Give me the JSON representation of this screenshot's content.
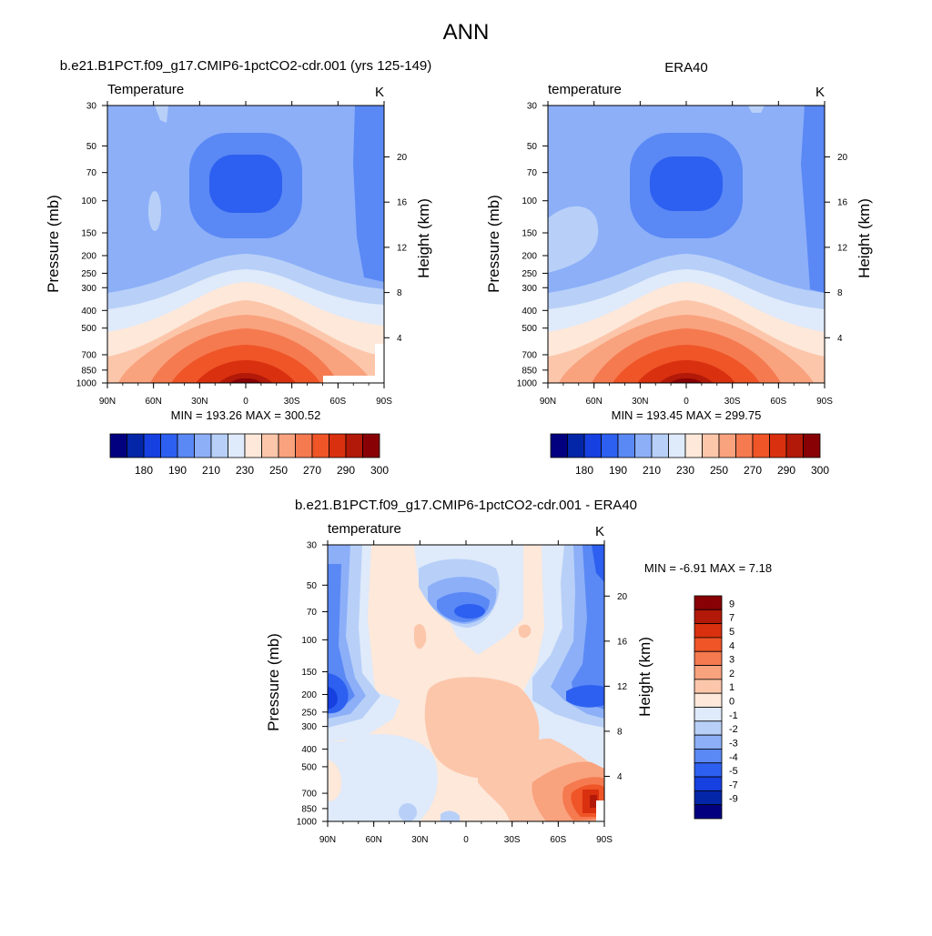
{
  "main_title": "ANN",
  "chart_data": [
    {
      "type": "heatmap",
      "title": "b.e21.B1PCT.f09_g17.CMIP6-1pctCO2-cdr.001 (yrs 125-149)",
      "left_label": "Temperature",
      "right_label": "K",
      "xlabel": "",
      "ylabel": "Pressure (mb)",
      "y2label": "Height (km)",
      "x_ticks": [
        "90N",
        "60N",
        "30N",
        "0",
        "30S",
        "60S",
        "90S"
      ],
      "y_ticks": [
        "30",
        "50",
        "70",
        "100",
        "150",
        "200",
        "250",
        "300",
        "400",
        "500",
        "700",
        "850",
        "1000"
      ],
      "y2_ticks": [
        "20",
        "16",
        "12",
        "8",
        "4"
      ],
      "min": 193.26,
      "max": 300.52,
      "stats": "MIN = 193.26  MAX = 300.52",
      "colorbar_labels": [
        "180",
        "190",
        "210",
        "230",
        "250",
        "270",
        "290",
        "300"
      ],
      "colorbar_colors": [
        "#030080",
        "#0326a8",
        "#1640e0",
        "#2d60f0",
        "#5a88f5",
        "#8caff8",
        "#b8d0f8",
        "#dfeafa",
        "#fde8da",
        "#fcc6aa",
        "#f9a27e",
        "#f57a50",
        "#ef5527",
        "#d9300f",
        "#b21908",
        "#880205"
      ]
    },
    {
      "type": "heatmap",
      "title": "ERA40",
      "left_label": "temperature",
      "right_label": "K",
      "xlabel": "",
      "ylabel": "Pressure (mb)",
      "y2label": "Height (km)",
      "x_ticks": [
        "90N",
        "60N",
        "30N",
        "0",
        "30S",
        "60S",
        "90S"
      ],
      "y_ticks": [
        "30",
        "50",
        "70",
        "100",
        "150",
        "200",
        "250",
        "300",
        "400",
        "500",
        "700",
        "850",
        "1000"
      ],
      "y2_ticks": [
        "20",
        "16",
        "12",
        "8",
        "4"
      ],
      "min": 193.45,
      "max": 299.75,
      "stats": "MIN = 193.45  MAX = 299.75",
      "colorbar_labels": [
        "180",
        "190",
        "210",
        "230",
        "250",
        "270",
        "290",
        "300"
      ],
      "colorbar_colors": [
        "#030080",
        "#0326a8",
        "#1640e0",
        "#2d60f0",
        "#5a88f5",
        "#8caff8",
        "#b8d0f8",
        "#dfeafa",
        "#fde8da",
        "#fcc6aa",
        "#f9a27e",
        "#f57a50",
        "#ef5527",
        "#d9300f",
        "#b21908",
        "#880205"
      ]
    },
    {
      "type": "heatmap",
      "title": "b.e21.B1PCT.f09_g17.CMIP6-1pctCO2-cdr.001 - ERA40",
      "left_label": "temperature",
      "right_label": "K",
      "xlabel": "",
      "ylabel": "Pressure (mb)",
      "y2label": "Height (km)",
      "x_ticks": [
        "90N",
        "60N",
        "30N",
        "0",
        "30S",
        "60S",
        "90S"
      ],
      "y_ticks": [
        "30",
        "50",
        "70",
        "100",
        "150",
        "200",
        "250",
        "300",
        "400",
        "500",
        "700",
        "850",
        "1000"
      ],
      "y2_ticks": [
        "20",
        "16",
        "12",
        "8",
        "4"
      ],
      "min": -6.91,
      "max": 7.18,
      "stats": "MIN =  -6.91  MAX =   7.18",
      "colorbar_labels": [
        "9",
        "7",
        "5",
        "4",
        "3",
        "2",
        "1",
        "0",
        "-1",
        "-2",
        "-3",
        "-4",
        "-5",
        "-7",
        "-9"
      ],
      "colorbar_colors": [
        "#880205",
        "#b21908",
        "#d9300f",
        "#ef5527",
        "#f57a50",
        "#f9a27e",
        "#fcc6aa",
        "#fde8da",
        "#dfeafa",
        "#b8d0f8",
        "#8caff8",
        "#5a88f5",
        "#2d60f0",
        "#1640e0",
        "#0326a8",
        "#030080"
      ]
    }
  ]
}
